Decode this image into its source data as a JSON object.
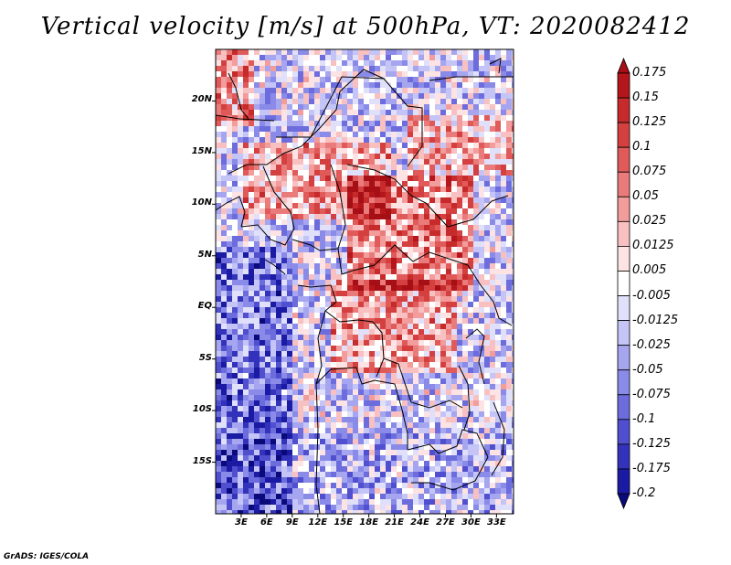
{
  "title": "Vertical velocity [m/s] at 500hPa, VT: 2020082412",
  "footer": "GrADS: IGES/COLA",
  "map": {
    "lat_range": [
      -20,
      25
    ],
    "lon_range": [
      0,
      35
    ],
    "lat_ticks": [
      "20N",
      "15N",
      "10N",
      "5N",
      "EQ",
      "5S",
      "10S",
      "15S"
    ],
    "lon_ticks": [
      "3E",
      "6E",
      "9E",
      "12E",
      "15E",
      "18E",
      "21E",
      "24E",
      "27E",
      "30E",
      "33E"
    ]
  },
  "colorbar": {
    "levels": [
      "0.175",
      "0.15",
      "0.125",
      "0.1",
      "0.075",
      "0.05",
      "0.025",
      "0.0125",
      "0.005",
      "-0.005",
      "-0.0125",
      "-0.025",
      "-0.05",
      "-0.075",
      "-0.1",
      "-0.125",
      "-0.175",
      "-0.2"
    ],
    "colors": [
      "#a50f15",
      "#b5161c",
      "#c62a2a",
      "#d43f3f",
      "#e05a5a",
      "#ea7b7b",
      "#f29c9c",
      "#f8c0c0",
      "#fde3e3",
      "#ffffff",
      "#e0e0fb",
      "#c4c4f6",
      "#a6a6f0",
      "#8a8ae8",
      "#6c6cdd",
      "#4f4fcf",
      "#3232bb",
      "#1a1aa3",
      "#0a0a7a"
    ]
  }
}
